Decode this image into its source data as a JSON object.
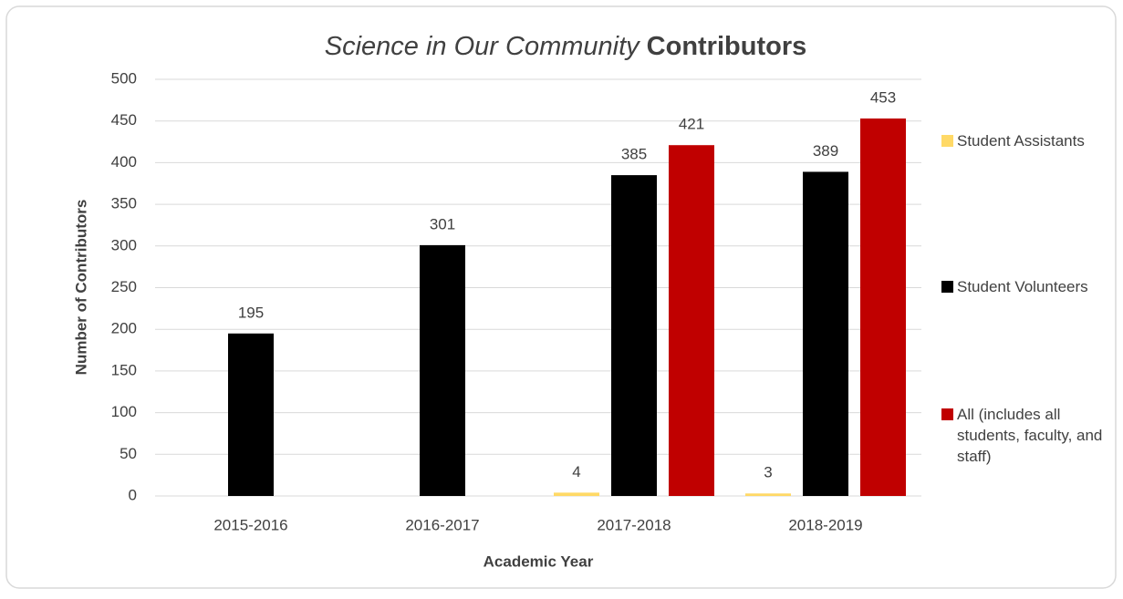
{
  "chart_data": {
    "type": "bar",
    "title": [
      "Science in Our Community",
      "Contributors"
    ],
    "x_label": "Academic Year",
    "y_label": "Number of Contributors",
    "categories": [
      "2015-2016",
      "2016-2017",
      "2017-2018",
      "2018-2019"
    ],
    "series": [
      {
        "name": "Student Assistants",
        "color": "#ffd966",
        "values": [
          null,
          null,
          4,
          3
        ]
      },
      {
        "name": "Student Volunteers",
        "color": "#000000",
        "values": [
          195,
          301,
          385,
          389
        ]
      },
      {
        "name": "All (includes all students, faculty, and staff)",
        "color": "#c00000",
        "values": [
          null,
          null,
          421,
          453
        ]
      }
    ],
    "ylim": [
      0,
      500
    ],
    "yticks": [
      0,
      50,
      100,
      150,
      200,
      250,
      300,
      350,
      400,
      450,
      500
    ],
    "grid": true,
    "legend": "right"
  }
}
